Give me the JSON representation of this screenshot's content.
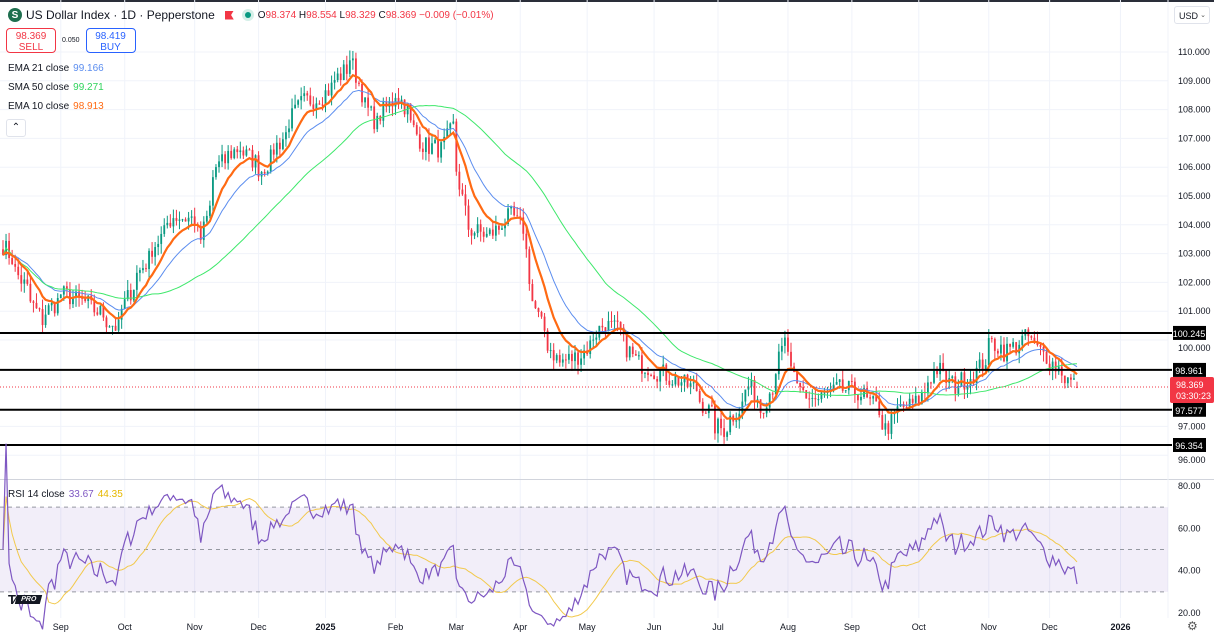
{
  "header": {
    "symbol_icon": "S",
    "title": "US Dollar Index · 1D · Pepperstone",
    "ohlc": {
      "o_label": "O",
      "o": "98.374",
      "h_label": "H",
      "h": "98.554",
      "l_label": "L",
      "l": "98.329",
      "c_label": "C",
      "c": "98.369",
      "change": "−0.009 (−0.01%)"
    }
  },
  "trade": {
    "sell_price": "98.369",
    "sell_label": "SELL",
    "spread": "0.050",
    "buy_price": "98.419",
    "buy_label": "BUY"
  },
  "indicators": [
    {
      "name": "EMA 21 close",
      "value": "99.166",
      "color": "#5b8def"
    },
    {
      "name": "SMA 50 close",
      "value": "99.271",
      "color": "#3ee86b"
    },
    {
      "name": "EMA 10 close",
      "value": "98.913",
      "color": "#ff6a13"
    }
  ],
  "rsi_legend": {
    "name": "RSI 14 close",
    "value": "33.67",
    "ma_value": "44.35",
    "color": "#7e57c2",
    "ma_color": "#f2c94c"
  },
  "currency": "USD",
  "countdown": "03:30:23",
  "colors": {
    "up": "#089981",
    "down": "#f23645",
    "level_line": "#000000",
    "rsi_band": "#7e57c2"
  },
  "icons": {
    "collapse": "chevron-up-icon",
    "currency_dropdown": "chevron-down-icon",
    "settings": "settings-gear-icon",
    "flag": "flag-icon",
    "market_status": "market-open-dot-icon"
  },
  "branding": {
    "logo": "TV",
    "badge": "PRO"
  },
  "chart_data": {
    "type": "candlestick",
    "interval": "1D",
    "price_ylim": [
      95.6,
      111
    ],
    "price_ticks": [
      "110.000",
      "109.000",
      "108.000",
      "107.000",
      "106.000",
      "105.000",
      "104.000",
      "103.000",
      "102.000",
      "101.000",
      "100.000",
      "97.000",
      "96.000"
    ],
    "horizontal_levels": [
      "100.245",
      "98.961",
      "97.577",
      "96.354"
    ],
    "last_price": "98.369",
    "last_bar": {
      "date": "2025-12-12",
      "open": 98.374,
      "high": 98.554,
      "low": 98.329,
      "close": 98.369
    },
    "close_path": [
      [
        "2024-08-06",
        103.3
      ],
      [
        "2024-08-23",
        100.7
      ],
      [
        "2024-09-02",
        101.6
      ],
      [
        "2024-09-12",
        101.3
      ],
      [
        "2024-09-20",
        100.9
      ],
      [
        "2024-09-27",
        100.4
      ],
      [
        "2024-10-04",
        101.9
      ],
      [
        "2024-10-14",
        103.2
      ],
      [
        "2024-10-23",
        104.3
      ],
      [
        "2024-11-01",
        104.2
      ],
      [
        "2024-11-05",
        103.5
      ],
      [
        "2024-11-12",
        106.0
      ],
      [
        "2024-11-22",
        106.7
      ],
      [
        "2024-12-03",
        105.9
      ],
      [
        "2024-12-12",
        107.0
      ],
      [
        "2024-12-20",
        108.2
      ],
      [
        "2024-12-31",
        108.5
      ],
      [
        "2025-01-09",
        109.3
      ],
      [
        "2025-01-13",
        109.8
      ],
      [
        "2025-01-17",
        108.6
      ],
      [
        "2025-01-24",
        107.5
      ],
      [
        "2025-02-03",
        108.6
      ],
      [
        "2025-02-07",
        108.0
      ],
      [
        "2025-02-14",
        106.8
      ],
      [
        "2025-02-24",
        106.6
      ],
      [
        "2025-02-28",
        107.4
      ],
      [
        "2025-03-04",
        105.4
      ],
      [
        "2025-03-07",
        103.9
      ],
      [
        "2025-03-17",
        103.6
      ],
      [
        "2025-03-27",
        104.3
      ],
      [
        "2025-04-02",
        103.9
      ],
      [
        "2025-04-04",
        102.2
      ],
      [
        "2025-04-10",
        100.5
      ],
      [
        "2025-04-18",
        99.2
      ],
      [
        "2025-04-29",
        99.5
      ],
      [
        "2025-05-09",
        100.6
      ],
      [
        "2025-05-16",
        100.3
      ],
      [
        "2025-05-23",
        99.3
      ],
      [
        "2025-06-03",
        98.9
      ],
      [
        "2025-06-12",
        98.6
      ],
      [
        "2025-06-20",
        98.3
      ],
      [
        "2025-06-30",
        97.0
      ],
      [
        "2025-07-03",
        96.9
      ],
      [
        "2025-07-10",
        97.6
      ],
      [
        "2025-07-15",
        98.4
      ],
      [
        "2025-07-21",
        97.6
      ],
      [
        "2025-07-28",
        99.0
      ],
      [
        "2025-07-31",
        99.9
      ],
      [
        "2025-08-06",
        98.3
      ],
      [
        "2025-08-15",
        97.9
      ],
      [
        "2025-08-25",
        98.3
      ],
      [
        "2025-09-03",
        98.2
      ],
      [
        "2025-09-12",
        97.6
      ],
      [
        "2025-09-16",
        96.9
      ],
      [
        "2025-09-22",
        97.6
      ],
      [
        "2025-09-30",
        97.8
      ],
      [
        "2025-10-09",
        99.0
      ],
      [
        "2025-10-17",
        98.4
      ],
      [
        "2025-10-28",
        98.9
      ],
      [
        "2025-11-04",
        99.9
      ],
      [
        "2025-11-10",
        99.6
      ],
      [
        "2025-11-20",
        100.1
      ],
      [
        "2025-11-26",
        99.6
      ],
      [
        "2025-12-03",
        99.1
      ],
      [
        "2025-12-12",
        98.369
      ]
    ],
    "series": [
      {
        "name": "EMA 21 close",
        "period": 21,
        "kind": "ema",
        "color": "#5b8def"
      },
      {
        "name": "SMA 50 close",
        "period": 50,
        "kind": "sma",
        "color": "#3ee86b"
      },
      {
        "name": "EMA 10 close",
        "period": 10,
        "kind": "ema",
        "color": "#ff6a13"
      }
    ],
    "rsi": {
      "period": 14,
      "ma_period": 14,
      "ylim": [
        15,
        85
      ],
      "bands": [
        70,
        50,
        30
      ],
      "ticks": [
        "80.00",
        "60.00",
        "40.00",
        "20.00"
      ]
    },
    "x_ticks": [
      {
        "date": "2024-09-01",
        "label": "Sep"
      },
      {
        "date": "2024-10-01",
        "label": "Oct"
      },
      {
        "date": "2024-11-01",
        "label": "Nov"
      },
      {
        "date": "2024-12-01",
        "label": "Dec"
      },
      {
        "date": "2025-01-01",
        "label": "2025"
      },
      {
        "date": "2025-02-01",
        "label": "Feb"
      },
      {
        "date": "2025-03-01",
        "label": "Mar"
      },
      {
        "date": "2025-04-01",
        "label": "Apr"
      },
      {
        "date": "2025-05-01",
        "label": "May"
      },
      {
        "date": "2025-06-01",
        "label": "Jun"
      },
      {
        "date": "2025-07-01",
        "label": "Jul"
      },
      {
        "date": "2025-08-01",
        "label": "Aug"
      },
      {
        "date": "2025-09-01",
        "label": "Sep"
      },
      {
        "date": "2025-10-01",
        "label": "Oct"
      },
      {
        "date": "2025-11-01",
        "label": "Nov"
      },
      {
        "date": "2025-12-01",
        "label": "Dec"
      },
      {
        "date": "2026-01-01",
        "label": "2026"
      }
    ]
  }
}
